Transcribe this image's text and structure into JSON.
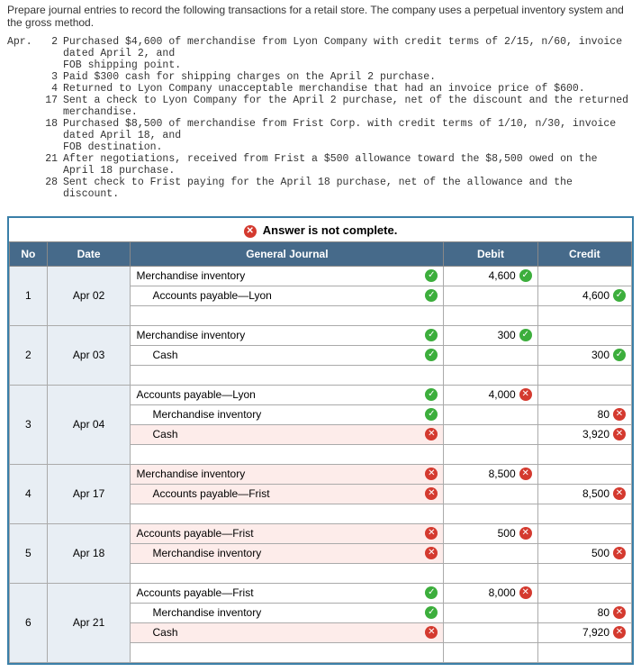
{
  "intro": "Prepare journal entries to record the following transactions for a retail store. The company uses a perpetual inventory system and the gross method.",
  "month_label": "Apr.",
  "lines": [
    {
      "day": "2",
      "text": "Purchased $4,600 of merchandise from Lyon Company with credit terms of 2/15, n/60, invoice dated April 2, and"
    },
    {
      "day": "",
      "text": "FOB shipping point.",
      "indent": true
    },
    {
      "day": "3",
      "text": "Paid $300 cash for shipping charges on the April 2 purchase."
    },
    {
      "day": "4",
      "text": "Returned to Lyon Company unacceptable merchandise that had an invoice price of $600."
    },
    {
      "day": "17",
      "text": "Sent a check to Lyon Company for the April 2 purchase, net of the discount and the returned merchandise."
    },
    {
      "day": "18",
      "text": "Purchased $8,500 of merchandise from Frist Corp. with credit terms of 1/10, n/30, invoice dated April 18, and"
    },
    {
      "day": "",
      "text": "FOB destination.",
      "indent": true
    },
    {
      "day": "21",
      "text": "After negotiations, received from Frist a $500 allowance toward the $8,500 owed on the April 18 purchase."
    },
    {
      "day": "28",
      "text": "Sent check to Frist paying for the April 18 purchase, net of the allowance and the discount."
    }
  ],
  "answer_not_complete": "Answer is not complete.",
  "headers": {
    "no": "No",
    "date": "Date",
    "journal": "General Journal",
    "debit": "Debit",
    "credit": "Credit"
  },
  "entries": [
    {
      "no": "1",
      "date": "Apr 02",
      "rows": [
        {
          "acc": "Merchandise inventory",
          "mark": "ok",
          "debit": "4,600",
          "dmark": "ok",
          "credit": ""
        },
        {
          "acc": "Accounts payable—Lyon",
          "indent": true,
          "mark": "ok",
          "debit": "",
          "credit": "4,600",
          "cmark": "ok"
        }
      ]
    },
    {
      "no": "2",
      "date": "Apr 03",
      "rows": [
        {
          "acc": "Merchandise inventory",
          "mark": "ok",
          "debit": "300",
          "dmark": "ok",
          "credit": ""
        },
        {
          "acc": "Cash",
          "indent": true,
          "mark": "ok",
          "debit": "",
          "credit": "300",
          "cmark": "ok"
        }
      ]
    },
    {
      "no": "3",
      "date": "Apr 04",
      "rows": [
        {
          "acc": "Accounts payable—Lyon",
          "mark": "ok",
          "debit": "4,000",
          "dmark": "bad",
          "credit": ""
        },
        {
          "acc": "Merchandise inventory",
          "indent": true,
          "mark": "ok",
          "debit": "",
          "credit": "80",
          "cmark": "bad"
        },
        {
          "acc": "Cash",
          "indent": true,
          "mark": "bad",
          "err": true,
          "debit": "",
          "credit": "3,920",
          "cmark": "bad"
        }
      ]
    },
    {
      "no": "4",
      "date": "Apr 17",
      "rows": [
        {
          "acc": "Merchandise inventory",
          "mark": "bad",
          "err": true,
          "debit": "8,500",
          "dmark": "bad",
          "credit": ""
        },
        {
          "acc": "Accounts payable—Frist",
          "indent": true,
          "mark": "bad",
          "err": true,
          "debit": "",
          "credit": "8,500",
          "cmark": "bad"
        }
      ]
    },
    {
      "no": "5",
      "date": "Apr 18",
      "rows": [
        {
          "acc": "Accounts payable—Frist",
          "mark": "bad",
          "err": true,
          "debit": "500",
          "dmark": "bad",
          "credit": ""
        },
        {
          "acc": "Merchandise inventory",
          "indent": true,
          "mark": "bad",
          "err": true,
          "debit": "",
          "credit": "500",
          "cmark": "bad"
        }
      ]
    },
    {
      "no": "6",
      "date": "Apr 21",
      "rows": [
        {
          "acc": "Accounts payable—Frist",
          "mark": "ok",
          "debit": "8,000",
          "dmark": "bad",
          "credit": ""
        },
        {
          "acc": "Merchandise inventory",
          "indent": true,
          "mark": "ok",
          "debit": "",
          "credit": "80",
          "cmark": "bad"
        },
        {
          "acc": "Cash",
          "indent": true,
          "mark": "bad",
          "err": true,
          "debit": "",
          "credit": "7,920",
          "cmark": "bad"
        }
      ]
    }
  ]
}
